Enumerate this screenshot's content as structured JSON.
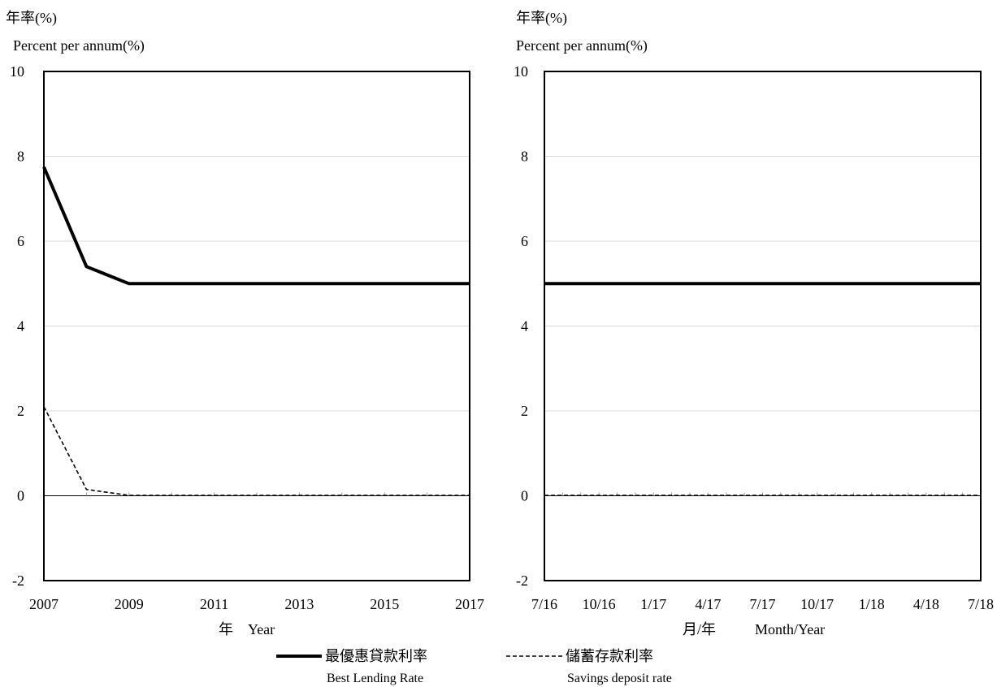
{
  "chart_data": [
    {
      "type": "line",
      "ylabel_zh": "年率(%)",
      "ylabel_en": "Percent per annum(%)",
      "xlabel_zh": "年",
      "xlabel_en": "Year",
      "ylim": [
        -2,
        10
      ],
      "yticks": [
        -2,
        0,
        2,
        4,
        6,
        8,
        10
      ],
      "xlim": [
        2007,
        2017
      ],
      "xticks": [
        "2007",
        "2009",
        "2011",
        "2013",
        "2015",
        "2017"
      ],
      "grid": true,
      "x": [
        2007,
        2008,
        2009,
        2010,
        2011,
        2012,
        2013,
        2014,
        2015,
        2016,
        2017
      ],
      "series": [
        {
          "name": "最優惠貸款利率 Best Lending Rate",
          "style": "solid",
          "values": [
            7.75,
            5.4,
            5.0,
            5.0,
            5.0,
            5.0,
            5.0,
            5.0,
            5.0,
            5.0,
            5.0
          ]
        },
        {
          "name": "儲蓄存款利率 Savings deposit rate",
          "style": "dashed",
          "values": [
            2.1,
            0.15,
            0.01,
            0.01,
            0.01,
            0.01,
            0.01,
            0.01,
            0.01,
            0.01,
            0.01
          ]
        }
      ]
    },
    {
      "type": "line",
      "ylabel_zh": "年率(%)",
      "ylabel_en": "Percent per annum(%)",
      "xlabel_zh": "月/年",
      "xlabel_en": "Month/Year",
      "ylim": [
        -2,
        10
      ],
      "yticks": [
        -2,
        0,
        2,
        4,
        6,
        8,
        10
      ],
      "x": [
        "7/16",
        "8/16",
        "9/16",
        "10/16",
        "11/16",
        "12/16",
        "1/17",
        "2/17",
        "3/17",
        "4/17",
        "5/17",
        "6/17",
        "7/17",
        "8/17",
        "9/17",
        "10/17",
        "11/17",
        "12/17",
        "1/18",
        "2/18",
        "3/18",
        "4/18",
        "5/18",
        "6/18",
        "7/18"
      ],
      "xticks": [
        "7/16",
        "10/16",
        "1/17",
        "4/17",
        "7/17",
        "10/17",
        "1/18",
        "4/18",
        "7/18"
      ],
      "grid": true,
      "series": [
        {
          "name": "最優惠貸款利率 Best Lending Rate",
          "style": "solid",
          "values": [
            5.0,
            5.0,
            5.0,
            5.0,
            5.0,
            5.0,
            5.0,
            5.0,
            5.0,
            5.0,
            5.0,
            5.0,
            5.0,
            5.0,
            5.0,
            5.0,
            5.0,
            5.0,
            5.0,
            5.0,
            5.0,
            5.0,
            5.0,
            5.0,
            5.0
          ]
        },
        {
          "name": "儲蓄存款利率 Savings deposit rate",
          "style": "dashed",
          "values": [
            0.01,
            0.01,
            0.01,
            0.01,
            0.01,
            0.01,
            0.01,
            0.01,
            0.01,
            0.01,
            0.01,
            0.01,
            0.01,
            0.01,
            0.01,
            0.01,
            0.01,
            0.01,
            0.01,
            0.01,
            0.01,
            0.01,
            0.01,
            0.01,
            0.01
          ]
        }
      ]
    }
  ],
  "legend": {
    "placement": "bottom",
    "items": [
      {
        "label_zh": "最優惠貸款利率",
        "label_en": "Best Lending Rate",
        "style": "solid"
      },
      {
        "label_zh": "儲蓄存款利率",
        "label_en": "Savings deposit rate",
        "style": "dashed"
      }
    ]
  }
}
